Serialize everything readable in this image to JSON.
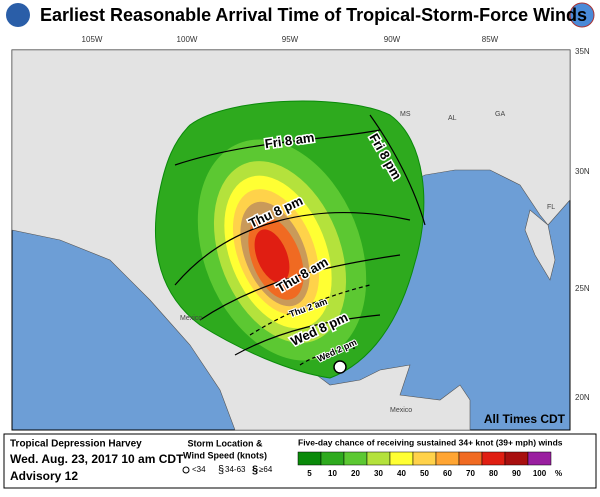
{
  "header": {
    "title": "Earliest Reasonable Arrival Time of Tropical-Storm-Force Winds"
  },
  "map": {
    "longitudes": [
      "105W",
      "100W",
      "95W",
      "90W",
      "85W"
    ],
    "latitudes": [
      "35N",
      "30N",
      "25N",
      "20N"
    ],
    "states": [
      "MS",
      "AL",
      "GA",
      "FL"
    ],
    "countries": [
      "Mexico",
      "Mexico"
    ],
    "contours": [
      "Fri 8 am",
      "Fri 8 pm",
      "Thu 8 pm",
      "Thu 8 am",
      "Thu 2 am",
      "Wed 8 pm",
      "Wed 2 pm"
    ],
    "note": "All Times CDT"
  },
  "footer": {
    "storm": "Tropical Depression Harvey",
    "date": "Wed. Aug. 23, 2017 10 am CDT",
    "advisory": "Advisory 12",
    "location_title": "Storm Location &",
    "wind_title": "Wind Speed (knots)",
    "wind_classes": [
      "<34",
      "34-63",
      "≥64"
    ],
    "legend_title": "Five-day chance of receiving sustained 34+ knot (39+ mph) winds",
    "legend": [
      {
        "value": 5,
        "color": "#0a8a0a"
      },
      {
        "value": 10,
        "color": "#2eaa1e"
      },
      {
        "value": 20,
        "color": "#5cc832"
      },
      {
        "value": 30,
        "color": "#b4e23c"
      },
      {
        "value": 40,
        "color": "#ffff33"
      },
      {
        "value": 50,
        "color": "#ffd24a"
      },
      {
        "value": 60,
        "color": "#ffa533"
      },
      {
        "value": 70,
        "color": "#f06a22"
      },
      {
        "value": 80,
        "color": "#e01e12"
      },
      {
        "value": 90,
        "color": "#a80f0f"
      },
      {
        "value": 100,
        "color": "#9a1fa0"
      }
    ],
    "unit": "%"
  }
}
